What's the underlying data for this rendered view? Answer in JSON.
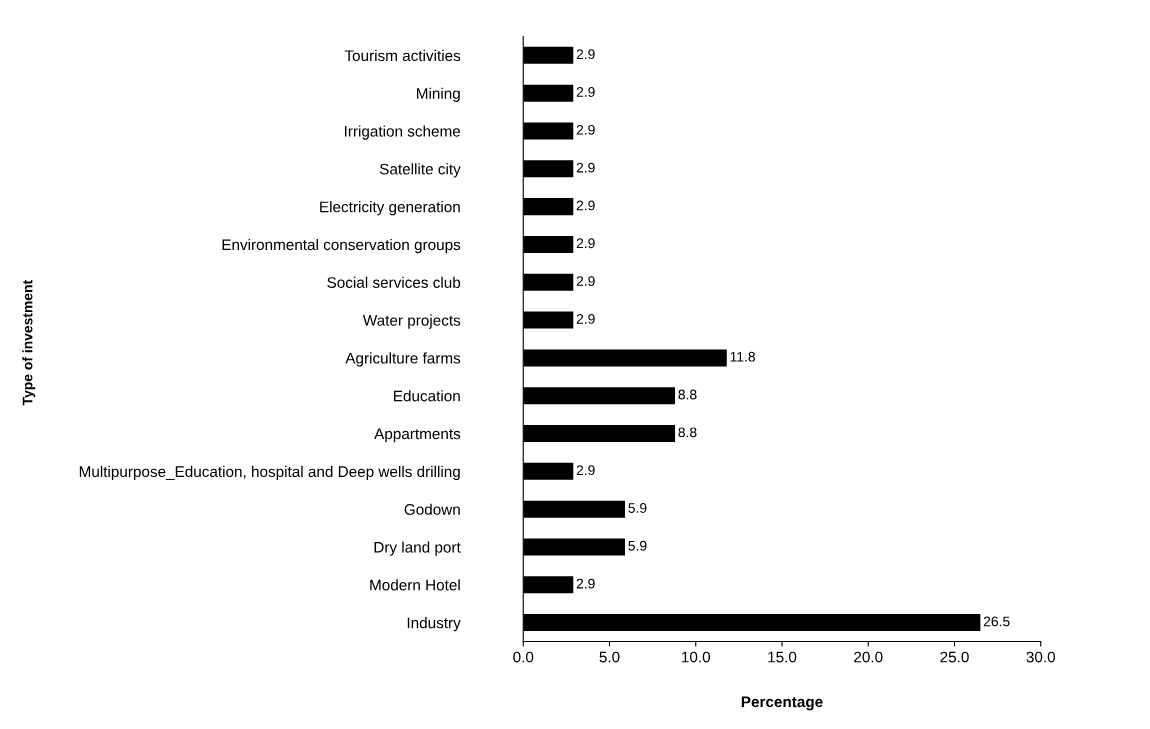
{
  "chart_data": {
    "type": "bar",
    "orientation": "horizontal",
    "xlabel": "Percentage",
    "ylabel": "Type of investment",
    "categories": [
      "Tourism activities",
      "Mining",
      "Irrigation scheme",
      "Satellite city",
      "Electricity generation",
      "Environmental conservation groups",
      "Social services club",
      "Water projects",
      "Agriculture farms",
      "Education",
      "Appartments",
      "Multipurpose_Education, hospital and Deep wells drilling",
      "Godown",
      "Dry land port",
      "Modern Hotel",
      "Industry"
    ],
    "values": [
      2.9,
      2.9,
      2.9,
      2.9,
      2.9,
      2.9,
      2.9,
      2.9,
      11.8,
      8.8,
      8.8,
      2.9,
      5.9,
      5.9,
      2.9,
      26.5
    ],
    "color": "#000000",
    "data_labels": true,
    "grid": false,
    "legend": false,
    "xlim": [
      0,
      30
    ],
    "xticks": [
      {
        "value": 0,
        "label": "0.0"
      },
      {
        "value": 5,
        "label": "5.0"
      },
      {
        "value": 10,
        "label": "10.0"
      },
      {
        "value": 15,
        "label": "15.0"
      },
      {
        "value": 20,
        "label": "20.0"
      },
      {
        "value": 25,
        "label": "25.0"
      },
      {
        "value": 30,
        "label": "30.0"
      }
    ]
  }
}
